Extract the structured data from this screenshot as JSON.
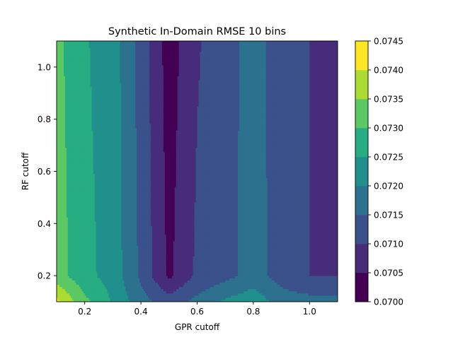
{
  "chart_data": {
    "type": "heatmap",
    "subtype": "filled-contour",
    "title": "Synthetic In-Domain RMSE 10 bins",
    "xlabel": "GPR cutoff",
    "ylabel": "RF cutoff",
    "xlim": [
      0.1,
      1.1
    ],
    "ylim": [
      0.1,
      1.1
    ],
    "x_ticks": [
      0.2,
      0.4,
      0.6,
      0.8,
      1.0
    ],
    "x_tick_labels": [
      "0.2",
      "0.4",
      "0.6",
      "0.8",
      "1.0"
    ],
    "y_ticks": [
      0.2,
      0.4,
      0.6,
      0.8,
      1.0
    ],
    "y_tick_labels": [
      "0.2",
      "0.4",
      "0.6",
      "0.8",
      "1.0"
    ],
    "colormap": "viridis",
    "colorbar": {
      "levels": [
        0.07,
        0.0705,
        0.071,
        0.0715,
        0.072,
        0.0725,
        0.073,
        0.0735,
        0.074,
        0.0745
      ],
      "tick_labels": [
        "0.0700",
        "0.0705",
        "0.0710",
        "0.0715",
        "0.0720",
        "0.0725",
        "0.0730",
        "0.0735",
        "0.0740",
        "0.0745"
      ],
      "band_colors": [
        "#440154",
        "#472c7a",
        "#3b518b",
        "#2c718e",
        "#21908d",
        "#27ad81",
        "#5cc863",
        "#aadc32",
        "#fde725"
      ]
    },
    "x": [
      0.1,
      0.2,
      0.3,
      0.4,
      0.5,
      0.6,
      0.7,
      0.8,
      0.9,
      1.0,
      1.1
    ],
    "y": [
      0.1,
      0.2,
      1.1
    ],
    "z": [
      [
        0.07415,
        0.07315,
        0.07245,
        0.0717,
        0.07125,
        0.07165,
        0.0721,
        0.07235,
        0.07175,
        0.0717,
        0.07165
      ],
      [
        0.07325,
        0.07265,
        0.0723,
        0.0714,
        0.0704,
        0.0711,
        0.07135,
        0.0717,
        0.0713,
        0.071,
        0.071
      ],
      [
        0.07315,
        0.07255,
        0.07225,
        0.0713,
        0.07025,
        0.07095,
        0.0713,
        0.0717,
        0.07125,
        0.071,
        0.0708
      ]
    ]
  }
}
